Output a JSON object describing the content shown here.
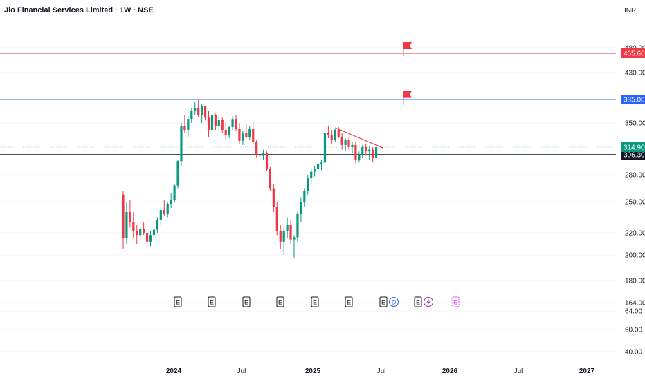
{
  "header": {
    "symbol_title": "Jio Financial Services Limited · 1W · NSE",
    "currency": "INR"
  },
  "colors": {
    "up": "#089981",
    "down": "#f23645",
    "resistance_line": "#f23645",
    "support_line": "#2962ff",
    "current_line": "#131722",
    "axis_text": "#131722",
    "grid": "#f0f3fa",
    "earnings_icon": "#131722",
    "dividend_icon": "#2962ff",
    "split_icon": "#9c27b0",
    "future_event_icon": "#e040fb"
  },
  "chart_data": {
    "type": "candlestick",
    "title": "Jio Financial Services Limited · 1W · NSE",
    "currency": "INR",
    "price_axis_ticks": [
      "480.00",
      "430.00",
      "385.00",
      "350.00",
      "280.00",
      "250.00",
      "220.00",
      "200.00",
      "180.00",
      "164.00",
      "64.00",
      "60.00",
      "40.00"
    ],
    "time_axis_labels": [
      "2024",
      "Jul",
      "2025",
      "Jul",
      "2026",
      "Jul",
      "2027"
    ],
    "horizontal_levels": [
      {
        "price": 465.6,
        "label": "465.60",
        "color": "#f23645"
      },
      {
        "price": 385.0,
        "label": "385.00",
        "color": "#2962ff"
      },
      {
        "price": 306.3,
        "label": "306.30",
        "color": "#131722"
      }
    ],
    "last_price": {
      "price": 314.9,
      "label": "314.90"
    },
    "trendline": {
      "from": {
        "week": 62,
        "price": 343
      },
      "to": {
        "week": 76,
        "price": 314
      }
    },
    "flags": [
      {
        "week": 82,
        "price": 480
      },
      {
        "week": 82,
        "price": 390
      }
    ],
    "events": [
      "E",
      "E",
      "E",
      "E",
      "E",
      "E",
      "E",
      "D",
      "E",
      "S",
      "E"
    ],
    "candles_approx_ohlc": [
      [
        258,
        262,
        205,
        215
      ],
      [
        215,
        250,
        210,
        240
      ],
      [
        240,
        252,
        225,
        230
      ],
      [
        230,
        240,
        215,
        222
      ],
      [
        222,
        228,
        210,
        218
      ],
      [
        218,
        226,
        213,
        224
      ],
      [
        224,
        230,
        218,
        220
      ],
      [
        220,
        226,
        205,
        212
      ],
      [
        212,
        222,
        208,
        218
      ],
      [
        218,
        225,
        214,
        223
      ],
      [
        223,
        235,
        220,
        232
      ],
      [
        232,
        245,
        228,
        242
      ],
      [
        242,
        252,
        236,
        238
      ],
      [
        238,
        250,
        235,
        248
      ],
      [
        248,
        260,
        244,
        252
      ],
      [
        252,
        270,
        250,
        268
      ],
      [
        268,
        300,
        265,
        298
      ],
      [
        298,
        350,
        292,
        345
      ],
      [
        345,
        362,
        335,
        340
      ],
      [
        340,
        360,
        330,
        356
      ],
      [
        356,
        372,
        350,
        368
      ],
      [
        368,
        382,
        362,
        372
      ],
      [
        372,
        384,
        358,
        362
      ],
      [
        362,
        378,
        350,
        375
      ],
      [
        375,
        370,
        355,
        358
      ],
      [
        358,
        368,
        330,
        340
      ],
      [
        340,
        365,
        335,
        362
      ],
      [
        362,
        364,
        340,
        345
      ],
      [
        345,
        360,
        338,
        355
      ],
      [
        355,
        358,
        335,
        340
      ],
      [
        340,
        352,
        325,
        332
      ],
      [
        332,
        346,
        328,
        344
      ],
      [
        344,
        360,
        340,
        356
      ],
      [
        356,
        362,
        338,
        342
      ],
      [
        342,
        350,
        320,
        324
      ],
      [
        324,
        338,
        318,
        335
      ],
      [
        335,
        348,
        328,
        330
      ],
      [
        330,
        345,
        325,
        342
      ],
      [
        342,
        352,
        320,
        322
      ],
      [
        322,
        325,
        303,
        306
      ],
      [
        306,
        310,
        298,
        305
      ],
      [
        305,
        312,
        300,
        308
      ],
      [
        308,
        310,
        285,
        288
      ],
      [
        288,
        290,
        262,
        265
      ],
      [
        265,
        270,
        240,
        245
      ],
      [
        245,
        250,
        218,
        222
      ],
      [
        222,
        228,
        205,
        212
      ],
      [
        212,
        225,
        200,
        222
      ],
      [
        222,
        235,
        215,
        228
      ],
      [
        228,
        232,
        210,
        214
      ],
      [
        214,
        218,
        198,
        216
      ],
      [
        216,
        240,
        212,
        238
      ],
      [
        238,
        255,
        230,
        250
      ],
      [
        250,
        265,
        245,
        262
      ],
      [
        262,
        280,
        258,
        276
      ],
      [
        276,
        288,
        270,
        284
      ],
      [
        284,
        292,
        278,
        288
      ],
      [
        288,
        300,
        284,
        294
      ],
      [
        294,
        300,
        286,
        296
      ],
      [
        296,
        340,
        292,
        335
      ],
      [
        335,
        345,
        328,
        332
      ],
      [
        332,
        340,
        320,
        325
      ],
      [
        325,
        342,
        322,
        340
      ],
      [
        340,
        344,
        328,
        330
      ],
      [
        330,
        336,
        312,
        318
      ],
      [
        318,
        328,
        310,
        325
      ],
      [
        325,
        330,
        312,
        315
      ],
      [
        315,
        322,
        308,
        318
      ],
      [
        318,
        322,
        295,
        300
      ],
      [
        300,
        310,
        296,
        306
      ],
      [
        306,
        318,
        302,
        315
      ],
      [
        315,
        320,
        305,
        310
      ],
      [
        310,
        316,
        300,
        312
      ],
      [
        312,
        315,
        296,
        302
      ],
      [
        302,
        322,
        300,
        314.9
      ]
    ]
  }
}
